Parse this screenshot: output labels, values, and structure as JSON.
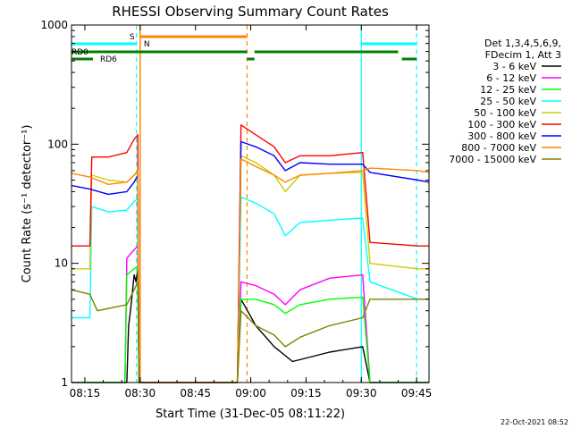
{
  "chart_data": {
    "type": "line",
    "title": "RHESSI Observing Summary Count Rates",
    "xlabel": "Start Time (31-Dec-05 08:11:22)",
    "ylabel": "Count Rate (s⁻¹ detector⁻¹)",
    "yscale": "log",
    "ylim": [
      1,
      1000
    ],
    "xlim_minutes": [
      0,
      97
    ],
    "x_ticks": [
      "08:15",
      "08:30",
      "08:45",
      "09:00",
      "09:15",
      "09:30",
      "09:45"
    ],
    "y_ticks": [
      "1",
      "10",
      "100",
      "1000"
    ],
    "grid": false,
    "legend_position": "right",
    "legend_header": [
      "Det 1,3,4,5,6,9,",
      "FDecim 1, Att 3"
    ],
    "footer_date": "22-Oct-2021 08:52",
    "flag_labels": {
      "s": "S",
      "n": "N",
      "rd0": "RD0",
      "rd6": "RD6"
    },
    "series": [
      {
        "name": "3 - 6 keV",
        "color": "#000000",
        "points": [
          [
            0,
            1
          ],
          [
            15,
            1
          ],
          [
            15.5,
            3
          ],
          [
            16,
            4
          ],
          [
            17,
            8
          ],
          [
            17.5,
            7
          ],
          [
            18,
            9
          ],
          [
            18.3,
            1
          ],
          [
            45,
            1
          ],
          [
            46,
            5
          ],
          [
            50,
            3
          ],
          [
            55,
            2
          ],
          [
            60,
            1.5
          ],
          [
            70,
            1.8
          ],
          [
            79,
            2
          ],
          [
            81,
            1
          ],
          [
            97,
            1
          ]
        ]
      },
      {
        "name": "6 - 12 keV",
        "color": "#ff00ff",
        "points": [
          [
            0,
            1
          ],
          [
            14.5,
            1
          ],
          [
            15,
            11
          ],
          [
            16,
            12
          ],
          [
            17,
            13
          ],
          [
            18,
            14
          ],
          [
            18.3,
            1
          ],
          [
            45,
            1
          ],
          [
            46,
            7
          ],
          [
            50,
            6.5
          ],
          [
            55,
            5.5
          ],
          [
            58,
            4.5
          ],
          [
            62,
            6
          ],
          [
            70,
            7.5
          ],
          [
            79,
            8
          ],
          [
            81,
            1
          ],
          [
            97,
            1
          ]
        ]
      },
      {
        "name": "12 - 25 keV",
        "color": "#00ff00",
        "points": [
          [
            0,
            1
          ],
          [
            14.5,
            1
          ],
          [
            15,
            8
          ],
          [
            16,
            8.5
          ],
          [
            17,
            9
          ],
          [
            18,
            9.5
          ],
          [
            18.3,
            1
          ],
          [
            45,
            1
          ],
          [
            46,
            5
          ],
          [
            50,
            5
          ],
          [
            55,
            4.5
          ],
          [
            58,
            3.8
          ],
          [
            62,
            4.5
          ],
          [
            70,
            5
          ],
          [
            79,
            5.2
          ],
          [
            81,
            1
          ],
          [
            97,
            1
          ]
        ]
      },
      {
        "name": "25 - 50 keV",
        "color": "#00ffff",
        "points": [
          [
            0,
            3.5
          ],
          [
            5,
            3.5
          ],
          [
            5.5,
            30
          ],
          [
            10,
            27
          ],
          [
            15,
            28
          ],
          [
            17,
            33
          ],
          [
            18,
            35
          ],
          [
            18.3,
            1
          ],
          [
            45,
            1
          ],
          [
            46,
            36
          ],
          [
            50,
            32
          ],
          [
            55,
            26
          ],
          [
            58,
            17
          ],
          [
            62,
            22
          ],
          [
            70,
            23
          ],
          [
            79,
            24
          ],
          [
            81,
            7
          ],
          [
            94,
            5
          ],
          [
            97,
            5
          ]
        ]
      },
      {
        "name": "50 - 100 keV",
        "color": "#cccc00",
        "points": [
          [
            0,
            9
          ],
          [
            5,
            9
          ],
          [
            5.5,
            55
          ],
          [
            10,
            50
          ],
          [
            15,
            48
          ],
          [
            17,
            55
          ],
          [
            18,
            58
          ],
          [
            18.3,
            1
          ],
          [
            45,
            1
          ],
          [
            46,
            80
          ],
          [
            50,
            70
          ],
          [
            55,
            55
          ],
          [
            58,
            40
          ],
          [
            62,
            55
          ],
          [
            70,
            57
          ],
          [
            79,
            58
          ],
          [
            81,
            10
          ],
          [
            94,
            9
          ],
          [
            97,
            9
          ]
        ]
      },
      {
        "name": "100 - 300 keV",
        "color": "#ff0000",
        "points": [
          [
            0,
            14
          ],
          [
            5,
            14
          ],
          [
            5.5,
            78
          ],
          [
            10,
            78
          ],
          [
            15,
            85
          ],
          [
            17,
            110
          ],
          [
            18,
            120
          ],
          [
            18.3,
            1
          ],
          [
            45,
            1
          ],
          [
            46,
            145
          ],
          [
            50,
            120
          ],
          [
            55,
            95
          ],
          [
            58,
            70
          ],
          [
            62,
            80
          ],
          [
            70,
            80
          ],
          [
            79,
            85
          ],
          [
            81,
            15
          ],
          [
            94,
            14
          ],
          [
            97,
            14
          ]
        ]
      },
      {
        "name": "300 - 800 keV",
        "color": "#0000ff",
        "points": [
          [
            0,
            45
          ],
          [
            5,
            42
          ],
          [
            10,
            38
          ],
          [
            15,
            40
          ],
          [
            17,
            48
          ],
          [
            18,
            55
          ],
          [
            18.3,
            1
          ],
          [
            45,
            1
          ],
          [
            46,
            105
          ],
          [
            50,
            95
          ],
          [
            55,
            80
          ],
          [
            58,
            60
          ],
          [
            62,
            70
          ],
          [
            70,
            68
          ],
          [
            79,
            68
          ],
          [
            81,
            58
          ],
          [
            94,
            50
          ],
          [
            97,
            48
          ]
        ]
      },
      {
        "name": "800 - 7000 keV",
        "color": "#ff8800",
        "points": [
          [
            0,
            57
          ],
          [
            5,
            53
          ],
          [
            10,
            46
          ],
          [
            15,
            48
          ],
          [
            17,
            55
          ],
          [
            18,
            60
          ],
          [
            18.3,
            1
          ],
          [
            45,
            1
          ],
          [
            46,
            75
          ],
          [
            50,
            65
          ],
          [
            55,
            55
          ],
          [
            58,
            48
          ],
          [
            62,
            55
          ],
          [
            70,
            57
          ],
          [
            79,
            60
          ],
          [
            81,
            63
          ],
          [
            94,
            60
          ],
          [
            97,
            58
          ]
        ]
      },
      {
        "name": "7000 - 15000 keV",
        "color": "#808000",
        "points": [
          [
            0,
            6
          ],
          [
            5,
            5.5
          ],
          [
            7,
            4
          ],
          [
            15,
            4.5
          ],
          [
            17,
            6
          ],
          [
            18,
            7
          ],
          [
            18.3,
            1
          ],
          [
            45,
            1
          ],
          [
            46,
            4
          ],
          [
            50,
            3
          ],
          [
            55,
            2.5
          ],
          [
            58,
            2
          ],
          [
            62,
            2.4
          ],
          [
            70,
            3
          ],
          [
            79,
            3.5
          ],
          [
            81,
            5
          ],
          [
            94,
            5
          ],
          [
            97,
            5
          ]
        ]
      }
    ]
  }
}
